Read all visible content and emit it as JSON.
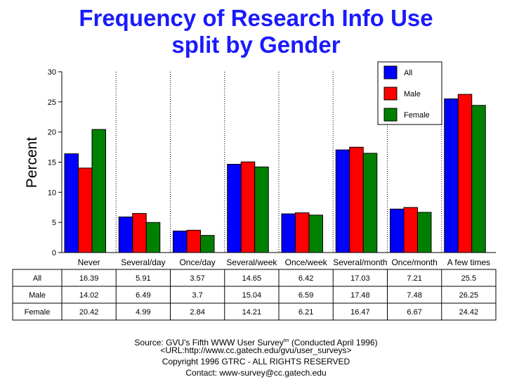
{
  "chart_data": {
    "type": "bar",
    "title": "Frequency of Research Info Use",
    "subtitle": "split by Gender",
    "ylabel": "Percent",
    "xlabel": "",
    "ylim": [
      0,
      30
    ],
    "yticks": [
      0,
      5,
      10,
      15,
      20,
      25,
      30
    ],
    "legend_position": "top-right",
    "categories": [
      "Never",
      "Several/day",
      "Once/day",
      "Several/week",
      "Once/week",
      "Several/month",
      "Once/month",
      "A few times"
    ],
    "series": [
      {
        "name": "All",
        "color": "#0000ff",
        "values": [
          16.39,
          5.91,
          3.57,
          14.65,
          6.42,
          17.03,
          7.21,
          25.5
        ],
        "labels": [
          "16.39",
          "5.91",
          "3.57",
          "14.65",
          "6.42",
          "17.03",
          "7.21",
          "25.5"
        ]
      },
      {
        "name": "Male",
        "color": "#ff0000",
        "values": [
          14.02,
          6.49,
          3.7,
          15.04,
          6.59,
          17.48,
          7.48,
          26.25
        ],
        "labels": [
          "14.02",
          "6.49",
          "3.7",
          "15.04",
          "6.59",
          "17.48",
          "7.48",
          "26.25"
        ]
      },
      {
        "name": "Female",
        "color": "#008000",
        "values": [
          20.42,
          4.99,
          2.84,
          14.21,
          6.21,
          16.47,
          6.67,
          24.42
        ],
        "labels": [
          "20.42",
          "4.99",
          "2.84",
          "14.21",
          "6.21",
          "16.47",
          "6.67",
          "24.42"
        ]
      }
    ]
  },
  "footer": {
    "source_pre": "Source: GVU's Fifth WWW User Survey",
    "source_sup": "tm",
    "source_post": "  (Conducted April 1996)",
    "url": "<URL:http://www.cc.gatech.edu/gvu/user_surveys>",
    "copyright": "Copyright 1996 GTRC -  ALL RIGHTS RESERVED",
    "contact": "Contact: www-survey@cc.gatech.edu"
  }
}
